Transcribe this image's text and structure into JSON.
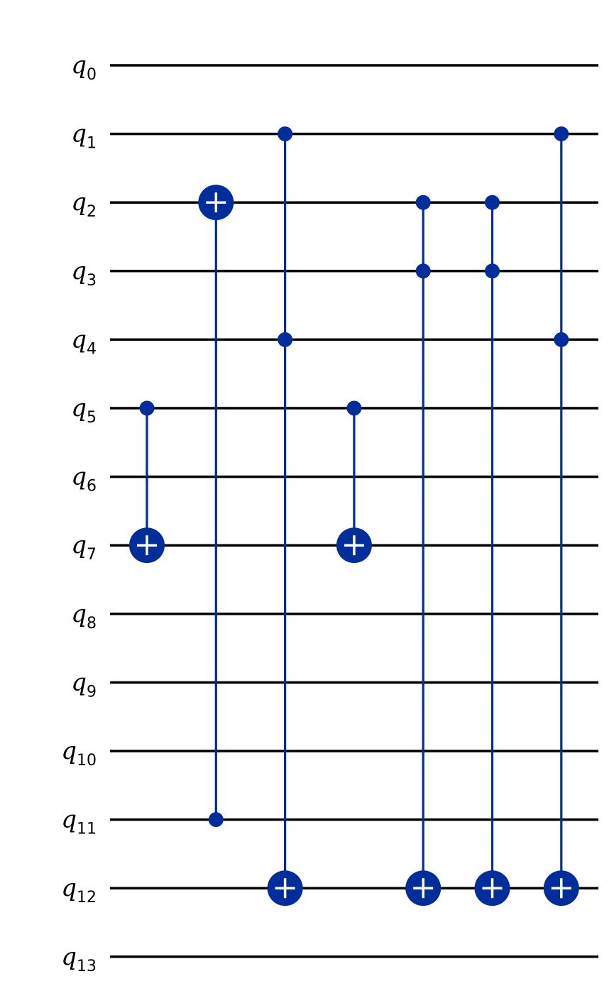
{
  "circuit": {
    "qubits": [
      "0",
      "1",
      "2",
      "3",
      "4",
      "5",
      "6",
      "7",
      "8",
      "9",
      "10",
      "11",
      "12",
      "13"
    ],
    "qubit_prefix": "q",
    "colors": {
      "wire": "#000000",
      "gate": "#002D9C",
      "gate_symbol": "#ffffff"
    },
    "gates": [
      {
        "type": "cx",
        "name": "cx-5-7",
        "controls": [
          5
        ],
        "target": 7
      },
      {
        "type": "cx",
        "name": "cx-11-2",
        "controls": [
          11
        ],
        "target": 2
      },
      {
        "type": "ccx",
        "name": "ccx-1-4-12",
        "controls": [
          1,
          4
        ],
        "target": 12
      },
      {
        "type": "cx",
        "name": "cx-5-7-second",
        "controls": [
          5
        ],
        "target": 7
      },
      {
        "type": "ccx",
        "name": "ccx-2-3-12-a",
        "controls": [
          2,
          3
        ],
        "target": 12
      },
      {
        "type": "ccx",
        "name": "ccx-2-3-12-b",
        "controls": [
          2,
          3
        ],
        "target": 12
      },
      {
        "type": "ccx",
        "name": "ccx-1-4-12-second",
        "controls": [
          1,
          4
        ],
        "target": 12
      }
    ]
  }
}
